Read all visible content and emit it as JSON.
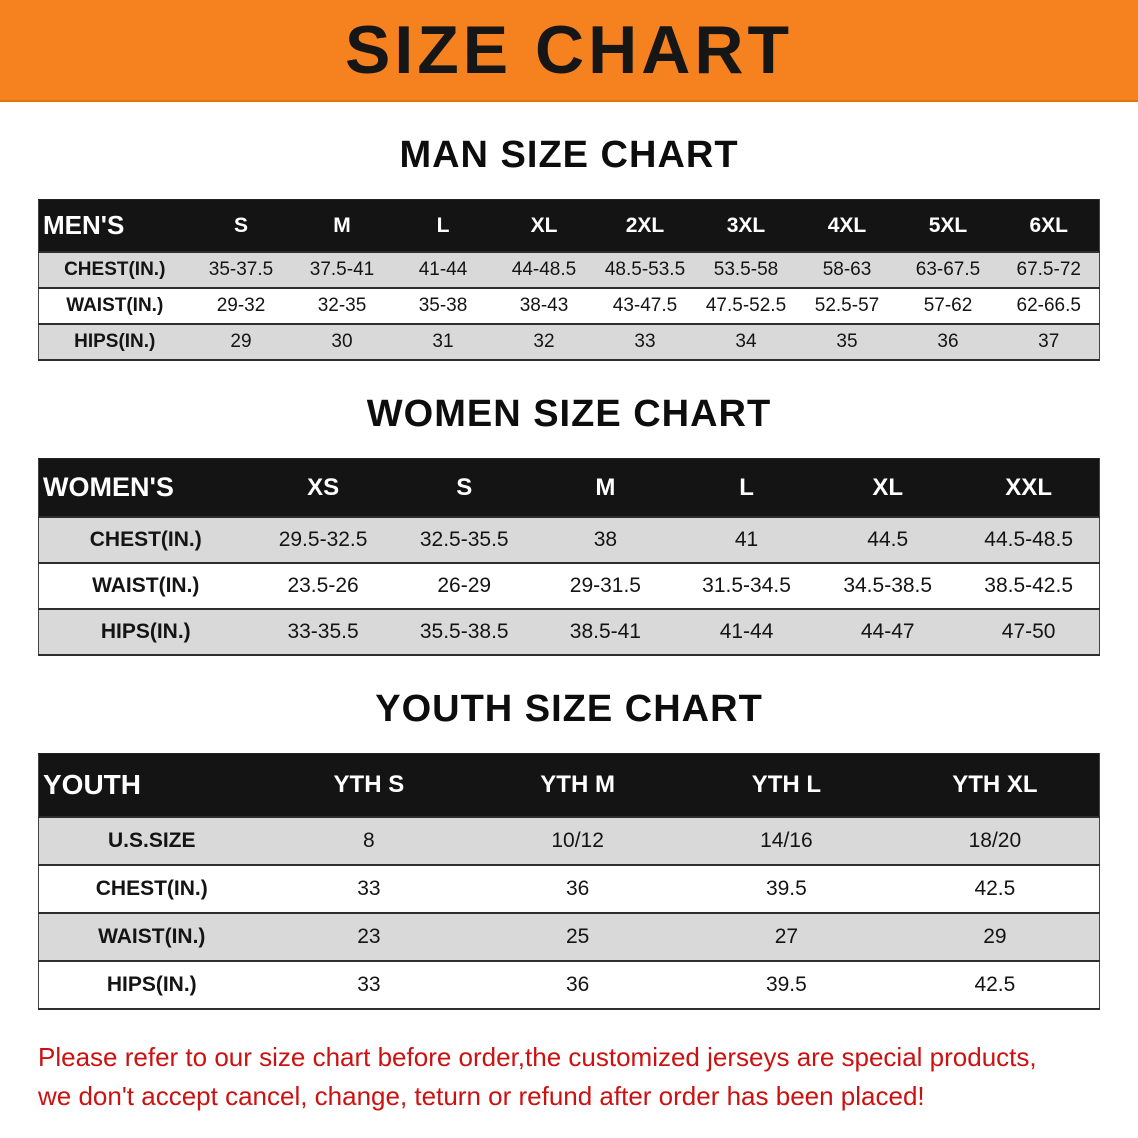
{
  "banner": {
    "title": "SIZE CHART"
  },
  "sections": [
    {
      "heading": "MAN SIZE CHART",
      "table": {
        "header": [
          "MEN'S",
          "S",
          "M",
          "L",
          "XL",
          "2XL",
          "3XL",
          "4XL",
          "5XL",
          "6XL"
        ],
        "rows": [
          [
            "CHEST(IN.)",
            "35-37.5",
            "37.5-41",
            "41-44",
            "44-48.5",
            "48.5-53.5",
            "53.5-58",
            "58-63",
            "63-67.5",
            "67.5-72"
          ],
          [
            "WAIST(IN.)",
            "29-32",
            "32-35",
            "35-38",
            "38-43",
            "43-47.5",
            "47.5-52.5",
            "52.5-57",
            "57-62",
            "62-66.5"
          ],
          [
            "HIPS(IN.)",
            "29",
            "30",
            "31",
            "32",
            "33",
            "34",
            "35",
            "36",
            "37"
          ]
        ]
      }
    },
    {
      "heading": "WOMEN SIZE CHART",
      "table": {
        "header": [
          "WOMEN'S",
          "XS",
          "S",
          "M",
          "L",
          "XL",
          "XXL"
        ],
        "rows": [
          [
            "CHEST(IN.)",
            "29.5-32.5",
            "32.5-35.5",
            "38",
            "41",
            "44.5",
            "44.5-48.5"
          ],
          [
            "WAIST(IN.)",
            "23.5-26",
            "26-29",
            "29-31.5",
            "31.5-34.5",
            "34.5-38.5",
            "38.5-42.5"
          ],
          [
            "HIPS(IN.)",
            "33-35.5",
            "35.5-38.5",
            "38.5-41",
            "41-44",
            "44-47",
            "47-50"
          ]
        ]
      }
    },
    {
      "heading": "YOUTH SIZE CHART",
      "table": {
        "header": [
          "YOUTH",
          "YTH S",
          "YTH M",
          "YTH L",
          "YTH XL"
        ],
        "rows": [
          [
            "U.S.SIZE",
            "8",
            "10/12",
            "14/16",
            "18/20"
          ],
          [
            "CHEST(IN.)",
            "33",
            "36",
            "39.5",
            "42.5"
          ],
          [
            "WAIST(IN.)",
            "23",
            "25",
            "27",
            "29"
          ],
          [
            "HIPS(IN.)",
            "33",
            "36",
            "39.5",
            "42.5"
          ]
        ]
      }
    }
  ],
  "footer": {
    "line1": "Please refer to our size chart before order,the customized jerseys are special products,",
    "line2": "we don't accept cancel, change, teturn or refund after order has been placed!"
  },
  "colors": {
    "banner_bg": "#f5821f",
    "header_bg": "#141414",
    "row_alt_bg": "#d9d9d9",
    "footer_text": "#cc1111"
  }
}
